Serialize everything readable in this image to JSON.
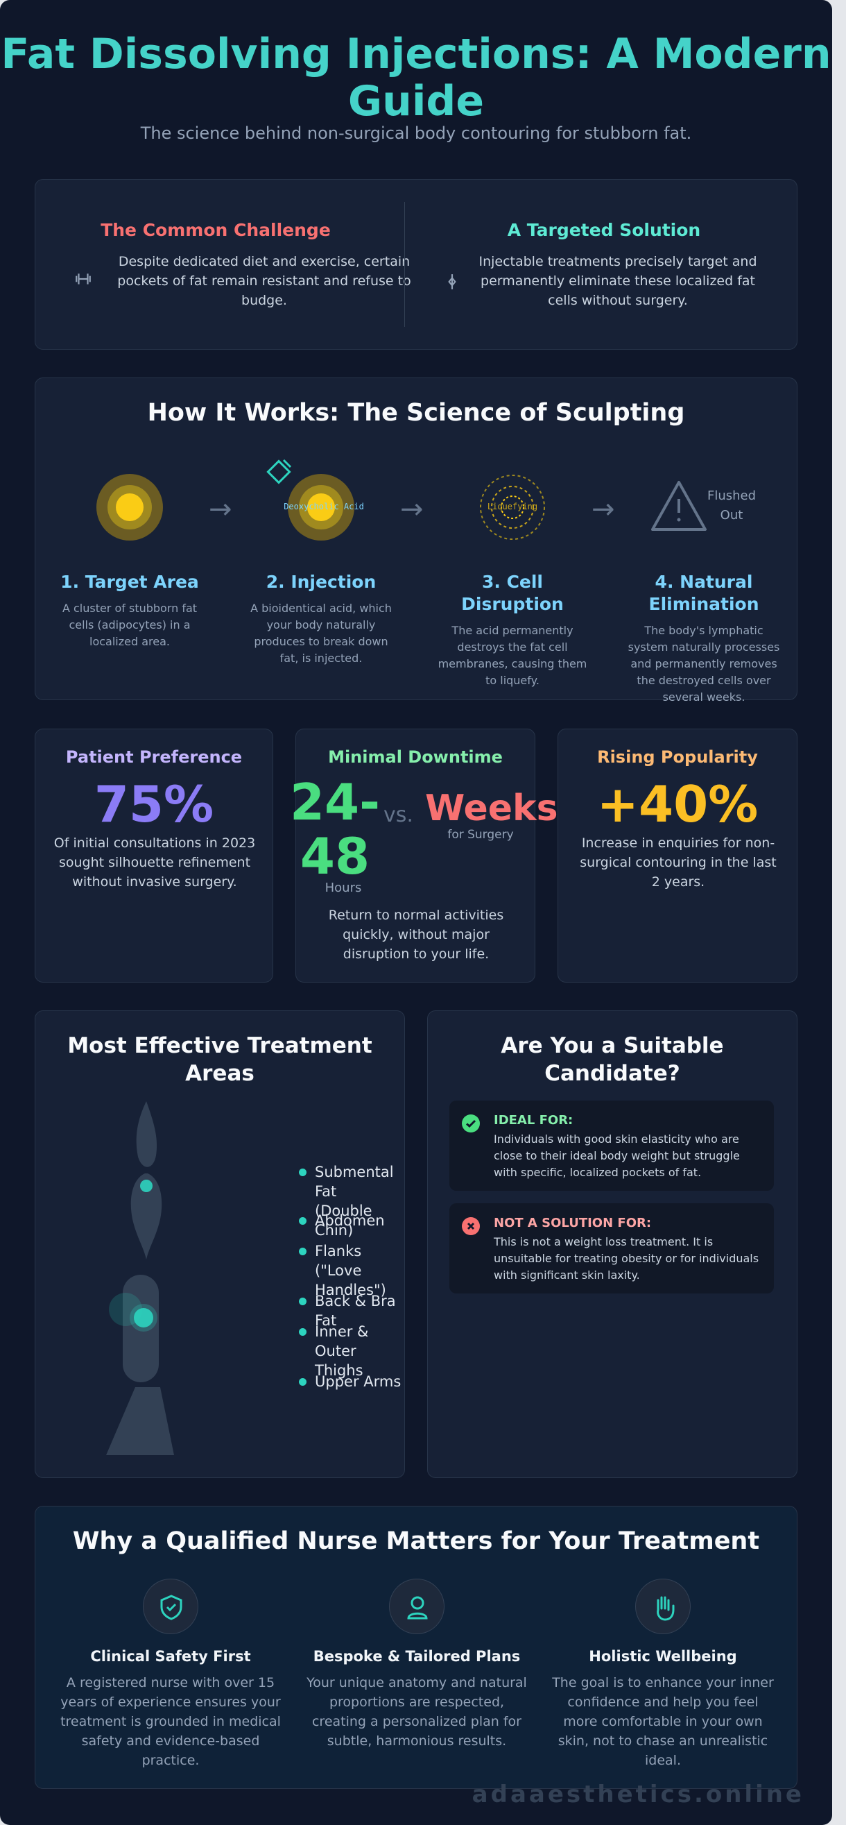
{
  "header": {
    "title": "Fat Dissolving Injections: A Modern Guide",
    "subtitle": "The science behind non-surgical body contouring for stubborn fat."
  },
  "intro": {
    "challenge": {
      "title": "The Common Challenge",
      "text": "Despite dedicated diet and exercise, certain pockets of fat remain resistant and refuse to budge.",
      "icon": "dumbbell-icon"
    },
    "solution": {
      "title": "A Targeted Solution",
      "text": "Injectable treatments precisely target and permanently eliminate these localized fat cells without surgery.",
      "icon": "target-icon"
    }
  },
  "how_it_works": {
    "title": "How It Works: The Science of Sculpting",
    "injection_label": "Deoxycholic Acid",
    "liquefying_label": "Liquefying",
    "flushed_label": "Flushed Out",
    "steps": [
      {
        "title": "1. Target Area",
        "text": "A cluster of stubborn fat cells (adipocytes) in a localized area."
      },
      {
        "title": "2. Injection",
        "text": "A bioidentical acid, which your body naturally produces to break down fat, is injected."
      },
      {
        "title": "3. Cell Disruption",
        "text": "The acid permanently destroys the fat cell membranes, causing them to liquefy."
      },
      {
        "title": "4. Natural Elimination",
        "text": "The body's lymphatic system naturally processes and permanently removes the destroyed cells over several weeks."
      }
    ]
  },
  "stats": {
    "preference": {
      "title": "Patient Preference",
      "value": "75%",
      "text": "Of initial consultations in 2023 sought silhouette refinement without invasive surgery."
    },
    "downtime": {
      "title": "Minimal Downtime",
      "value": "24-48",
      "unit": "Hours",
      "vs": "vs.",
      "compare_value": "Weeks",
      "compare_unit": "for Surgery",
      "text": "Return to normal activities quickly, without major disruption to your life."
    },
    "popularity": {
      "title": "Rising Popularity",
      "value": "+40%",
      "text": "Increase in enquiries for non-surgical contouring in the last 2 years."
    }
  },
  "areas": {
    "title": "Most Effective Treatment Areas",
    "items": [
      "Submental Fat (Double Chin)",
      "Abdomen",
      "Flanks (\"Love Handles\")",
      "Back & Bra Fat",
      "Inner & Outer Thighs",
      "Upper Arms"
    ]
  },
  "candidate": {
    "title": "Are You a Suitable Candidate?",
    "ideal": {
      "label": "IDEAL FOR:",
      "text": "Individuals with good skin elasticity who are close to their ideal body weight but struggle with specific, localized pockets of fat."
    },
    "not": {
      "label": "NOT A SOLUTION FOR:",
      "text": "This is not a weight loss treatment. It is unsuitable for treating obesity or for individuals with significant skin laxity."
    }
  },
  "nurse": {
    "title": "Why a Qualified Nurse Matters for Your Treatment",
    "items": [
      {
        "icon": "shield-check-icon",
        "title": "Clinical Safety First",
        "text": "A registered nurse with over 15 years of experience ensures your treatment is grounded in medical safety and evidence-based practice."
      },
      {
        "icon": "user-icon",
        "title": "Bespoke & Tailored Plans",
        "text": "Your unique anatomy and natural proportions are respected, creating a personalized plan for subtle, harmonious results."
      },
      {
        "icon": "hand-icon",
        "title": "Holistic Wellbeing",
        "text": "The goal is to enhance your inner confidence and help you feel more comfortable in your own skin, not to chase an unrealistic ideal."
      }
    ]
  },
  "watermark": "adaaesthetics.online",
  "colors": {
    "background": "#0f172a",
    "card": "#172136",
    "teal": "#45d3c9",
    "red": "#f87171",
    "sky": "#7dd3fc",
    "purple": "#a78bfa",
    "green": "#4ade80",
    "orange": "#fbbf24",
    "gold": "#facc15"
  }
}
